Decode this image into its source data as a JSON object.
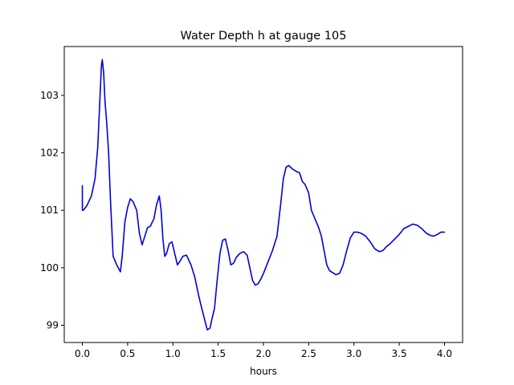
{
  "chart_data": {
    "type": "line",
    "title": "Water Depth h at gauge 105",
    "xlabel": "hours",
    "ylabel": "",
    "xlim": [
      -0.2,
      4.2
    ],
    "ylim": [
      98.7,
      103.85
    ],
    "xticks": [
      0.0,
      0.5,
      1.0,
      1.5,
      2.0,
      2.5,
      3.0,
      3.5,
      4.0
    ],
    "xtick_labels": [
      "0.0",
      "0.5",
      "1.0",
      "1.5",
      "2.0",
      "2.5",
      "3.0",
      "3.5",
      "4.0"
    ],
    "yticks": [
      99,
      100,
      101,
      102,
      103
    ],
    "ytick_labels": [
      "99",
      "100",
      "101",
      "102",
      "103"
    ],
    "grid": false,
    "legend": "none",
    "colors": {
      "line": "#0000dd",
      "axes": "#000000",
      "background": "#ffffff"
    },
    "series": [
      {
        "x": [
          0.0,
          0.0,
          0.01,
          0.05,
          0.1,
          0.14,
          0.17,
          0.19,
          0.21,
          0.22,
          0.235,
          0.25,
          0.27,
          0.29,
          0.31,
          0.34,
          0.38,
          0.42,
          0.44,
          0.47,
          0.5,
          0.53,
          0.56,
          0.6,
          0.63,
          0.66,
          0.69,
          0.72,
          0.75,
          0.79,
          0.82,
          0.85,
          0.87,
          0.89,
          0.91,
          0.93,
          0.96,
          0.99,
          1.02,
          1.05,
          1.08,
          1.11,
          1.15,
          1.2,
          1.24,
          1.28,
          1.31,
          1.35,
          1.38,
          1.41,
          1.43,
          1.46,
          1.49,
          1.52,
          1.55,
          1.58,
          1.61,
          1.64,
          1.67,
          1.7,
          1.74,
          1.78,
          1.82,
          1.85,
          1.88,
          1.91,
          1.94,
          1.97,
          2.0,
          2.05,
          2.1,
          2.15,
          2.19,
          2.22,
          2.25,
          2.28,
          2.32,
          2.36,
          2.4,
          2.43,
          2.46,
          2.5,
          2.53,
          2.57,
          2.61,
          2.64,
          2.67,
          2.7,
          2.73,
          2.76,
          2.8,
          2.84,
          2.88,
          2.92,
          2.96,
          3.0,
          3.04,
          3.08,
          3.13,
          3.18,
          3.23,
          3.28,
          3.32,
          3.36,
          3.4,
          3.45,
          3.5,
          3.55,
          3.6,
          3.65,
          3.7,
          3.75,
          3.8,
          3.85,
          3.88,
          3.92,
          3.96,
          4.0
        ],
        "values": [
          101.43,
          101.0,
          101.0,
          101.08,
          101.25,
          101.55,
          102.1,
          102.8,
          103.5,
          103.62,
          103.4,
          102.9,
          102.5,
          102.0,
          101.2,
          100.2,
          100.05,
          99.93,
          100.2,
          100.8,
          101.05,
          101.2,
          101.15,
          101.0,
          100.6,
          100.4,
          100.55,
          100.7,
          100.72,
          100.85,
          101.1,
          101.25,
          101.0,
          100.5,
          100.2,
          100.25,
          100.42,
          100.45,
          100.25,
          100.05,
          100.12,
          100.2,
          100.22,
          100.05,
          99.85,
          99.55,
          99.35,
          99.1,
          98.92,
          98.95,
          99.1,
          99.3,
          99.8,
          100.25,
          100.48,
          100.5,
          100.3,
          100.05,
          100.08,
          100.18,
          100.25,
          100.28,
          100.22,
          100.0,
          99.78,
          99.7,
          99.72,
          99.8,
          99.9,
          100.1,
          100.3,
          100.55,
          101.1,
          101.55,
          101.75,
          101.78,
          101.72,
          101.68,
          101.65,
          101.5,
          101.45,
          101.3,
          101.0,
          100.85,
          100.7,
          100.55,
          100.3,
          100.05,
          99.95,
          99.92,
          99.88,
          99.9,
          100.05,
          100.3,
          100.52,
          100.62,
          100.62,
          100.6,
          100.55,
          100.45,
          100.33,
          100.28,
          100.3,
          100.37,
          100.42,
          100.5,
          100.58,
          100.68,
          100.72,
          100.76,
          100.74,
          100.68,
          100.6,
          100.56,
          100.55,
          100.58,
          100.62,
          100.62
        ]
      }
    ]
  }
}
